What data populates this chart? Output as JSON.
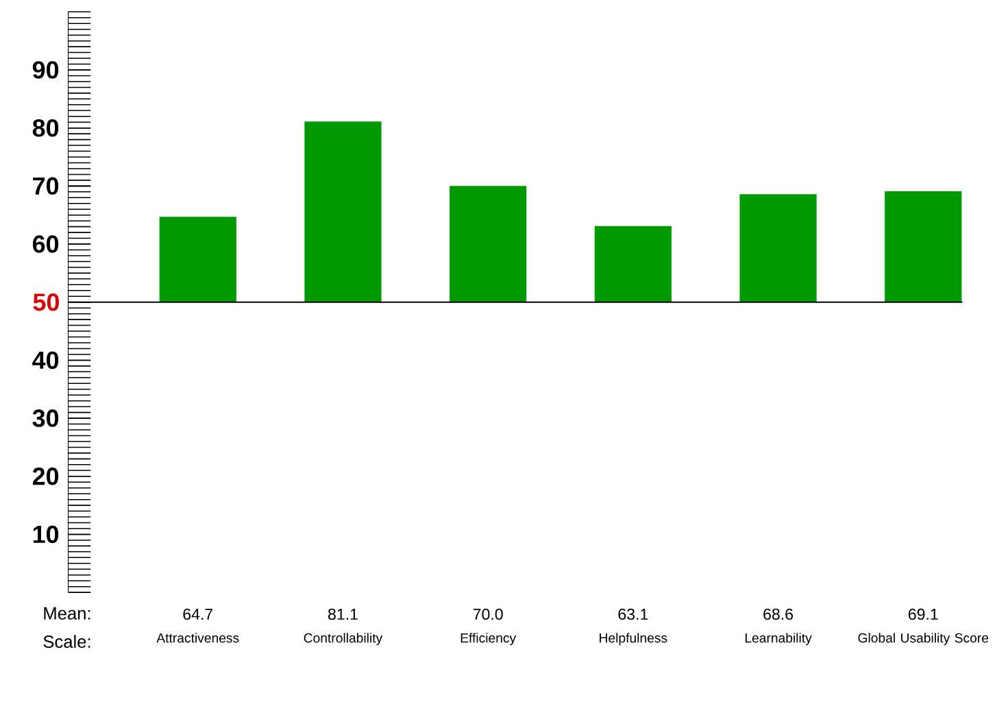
{
  "chart_data": {
    "type": "bar",
    "categories": [
      "Attractiveness",
      "Controllability",
      "Efficiency",
      "Helpfulness",
      "Learnability",
      "Global Usability Score"
    ],
    "base": [
      50,
      50,
      50,
      50,
      50,
      50
    ],
    "values": [
      14.7,
      31.1,
      20.0,
      13.1,
      18.6,
      19.1
    ],
    "value_labels": [
      "64.7",
      "81.1",
      "70.0",
      "63.1",
      "68.6",
      "69.1"
    ],
    "color": "#009900",
    "ylim": [
      0,
      100
    ],
    "yticks": [
      10,
      20,
      30,
      40,
      {
        "value": 50,
        "label": null
      },
      60,
      70,
      80,
      90
    ],
    "ref_lines": [
      {
        "axis": "y",
        "value": 50,
        "label": "50",
        "color": "#000000"
      }
    ],
    "annotations": [
      "Mean:",
      "Scale:"
    ]
  }
}
